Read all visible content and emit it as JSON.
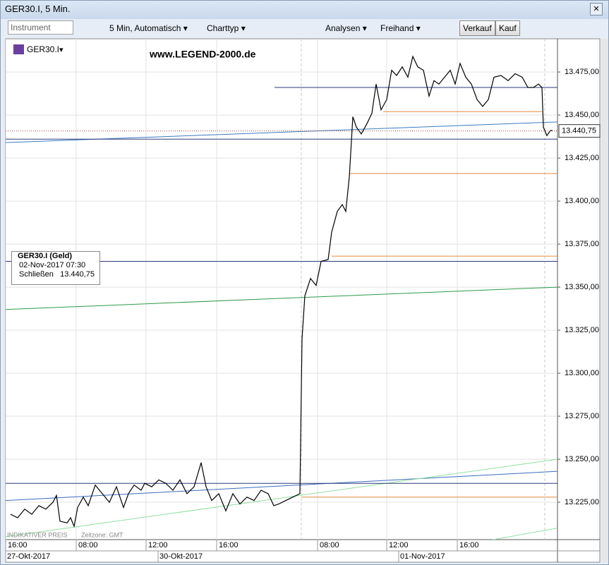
{
  "window": {
    "title": "GER30.I, 5 Min.",
    "toolbar": {
      "instrument": "Instrument",
      "interval": "5 Min,  Automatisch",
      "chart_type": "Charttyp",
      "analyses": "Analysen",
      "freehand": "Freihand",
      "sell": "Verkauf",
      "buy": "Kauf"
    }
  },
  "watermark": "www.LEGEND-2000.de",
  "info_box": {
    "title": "GER30.I (Geld)",
    "date": "02-Nov-2017 07:30",
    "label": "Schließen",
    "value": "13.440,75"
  },
  "footer": {
    "price_note": "INDIKATIVER PREIS",
    "timezone": "Zeitzone: GMT"
  },
  "chart_data": {
    "type": "line",
    "series": [
      {
        "name": "GER30.I",
        "color": "#000000",
        "x": [
          0.28,
          0.68,
          1.08,
          1.48,
          1.88,
          2.28,
          2.68,
          2.88,
          3.08,
          3.48,
          3.68,
          3.88,
          4.08,
          4.4,
          4.68,
          5.08,
          5.48,
          5.88,
          6.28,
          6.68,
          6.96,
          7.28,
          7.68,
          7.88,
          8.28,
          8.68,
          9.08,
          9.48,
          9.88,
          10.28,
          10.68,
          11.08,
          11.36,
          11.68,
          12.08,
          12.48,
          12.88,
          13.28,
          13.68,
          14.08,
          14.48,
          14.88,
          15.2,
          15.48,
          15.88,
          16.28,
          16.68,
          16.8,
          16.96,
          17.28,
          17.6,
          17.88,
          18.28,
          18.48,
          18.8,
          19.08,
          19.28,
          19.48,
          19.68,
          19.88,
          20.16,
          20.48,
          20.76,
          21.0,
          21.28,
          21.6,
          21.88,
          22.16,
          22.48,
          22.8,
          23.08,
          23.36,
          23.68,
          24.0,
          24.28,
          24.56,
          24.88,
          25.2,
          25.48,
          25.76,
          26.08,
          26.4,
          26.72,
          27.04,
          27.36,
          27.68,
          28.08,
          28.48,
          28.88,
          29.28,
          29.6,
          29.92,
          30.2,
          30.4,
          30.48,
          30.68,
          30.88,
          31.0
        ],
        "values": [
          13218,
          13216,
          13221,
          13218,
          13223,
          13221,
          13225,
          13229,
          13214,
          13213,
          13216,
          13211,
          13222,
          13228,
          13223,
          13235,
          13230,
          13225,
          13234,
          13222,
          13230,
          13235,
          13232,
          13236,
          13234,
          13238,
          13236,
          13232,
          13238,
          13230,
          13234,
          13248,
          13234,
          13226,
          13230,
          13220,
          13230,
          13224,
          13228,
          13226,
          13232,
          13230,
          13223,
          13224,
          13226,
          13228,
          13230,
          13320,
          13345,
          13355,
          13351,
          13365,
          13366,
          13382,
          13394,
          13398,
          13394,
          13414,
          13449,
          13443,
          13439,
          13445,
          13451,
          13468,
          13453,
          13459,
          13476,
          13473,
          13478,
          13472,
          13484,
          13478,
          13476,
          13461,
          13470,
          13468,
          13472,
          13476,
          13468,
          13480,
          13472,
          13468,
          13459,
          13455,
          13459,
          13472,
          13473,
          13470,
          13474,
          13472,
          13466,
          13466,
          13468,
          13466,
          13443,
          13438,
          13441,
          13441
        ]
      }
    ],
    "last_price": {
      "value": 13440.75,
      "label": "13.440,75"
    },
    "hlines": [
      {
        "value": 13466,
        "from": 15.24,
        "to": 31.28,
        "color": "#2a3a7a"
      },
      {
        "value": 13452,
        "from": 21.4,
        "to": 30.4,
        "color": "#e08a3c"
      },
      {
        "value": 13436,
        "from": 0,
        "to": 31.28,
        "color": "#2a3a7a"
      },
      {
        "value": 13416,
        "from": 19.52,
        "to": 31.28,
        "color": "#e08a3c"
      },
      {
        "value": 13368,
        "from": 18.48,
        "to": 31.28,
        "color": "#e08a3c"
      },
      {
        "value": 13365,
        "from": 0,
        "to": 31.28,
        "color": "#2a3a7a"
      },
      {
        "value": 13236,
        "from": 0,
        "to": 31.28,
        "color": "#2a3a7a"
      },
      {
        "value": 13228,
        "from": 16.76,
        "to": 31.28,
        "color": "#e08a3c"
      }
    ],
    "trendlines": [
      {
        "x": [
          0,
          31.28
        ],
        "y": [
          13434,
          13446
        ],
        "color": "#3a7cc0"
      },
      {
        "x": [
          0,
          31.28
        ],
        "y": [
          13337,
          13350
        ],
        "color": "#2e9a4a"
      },
      {
        "x": [
          0,
          31.28
        ],
        "y": [
          13226,
          13243
        ],
        "color": "#3a6cc0"
      },
      {
        "x": [
          0,
          31.28
        ],
        "y": [
          13205,
          13250
        ],
        "color": "#8ee0a0"
      },
      {
        "x": [
          22.08,
          31.28
        ],
        "y": [
          13193,
          13210
        ],
        "color": "#8ee0a0"
      }
    ],
    "session_breaks": [
      16.76,
      30.56
    ],
    "xlim": [
      0,
      31.28
    ],
    "xticks": [
      {
        "value": 0,
        "label": "16:00"
      },
      {
        "value": 4.0,
        "label": "08:00"
      },
      {
        "value": 7.96,
        "label": "12:00"
      },
      {
        "value": 11.96,
        "label": "16:00"
      },
      {
        "value": 17.68,
        "label": "08:00"
      },
      {
        "value": 21.6,
        "label": "12:00"
      },
      {
        "value": 25.6,
        "label": "16:00"
      }
    ],
    "date_ticks": [
      {
        "value": 0,
        "label": "27-Okt-2017"
      },
      {
        "value": 8.64,
        "label": "30-Okt-2017"
      },
      {
        "value": 22.28,
        "label": "01-Nov-2017"
      }
    ],
    "ylim": [
      13203.3,
      13494.3
    ],
    "yticks": [
      {
        "value": 13225,
        "label": "13.225,00"
      },
      {
        "value": 13250,
        "label": "13.250,00"
      },
      {
        "value": 13275,
        "label": "13.275,00"
      },
      {
        "value": 13300,
        "label": "13.300,00"
      },
      {
        "value": 13325,
        "label": "13.325,00"
      },
      {
        "value": 13350,
        "label": "13.350,00"
      },
      {
        "value": 13375,
        "label": "13.375,00"
      },
      {
        "value": 13400,
        "label": "13.400,00"
      },
      {
        "value": 13425,
        "label": "13.425,00"
      },
      {
        "value": 13450,
        "label": "13.450,00"
      },
      {
        "value": 13475,
        "label": "13.475,00"
      }
    ],
    "grid": true
  }
}
